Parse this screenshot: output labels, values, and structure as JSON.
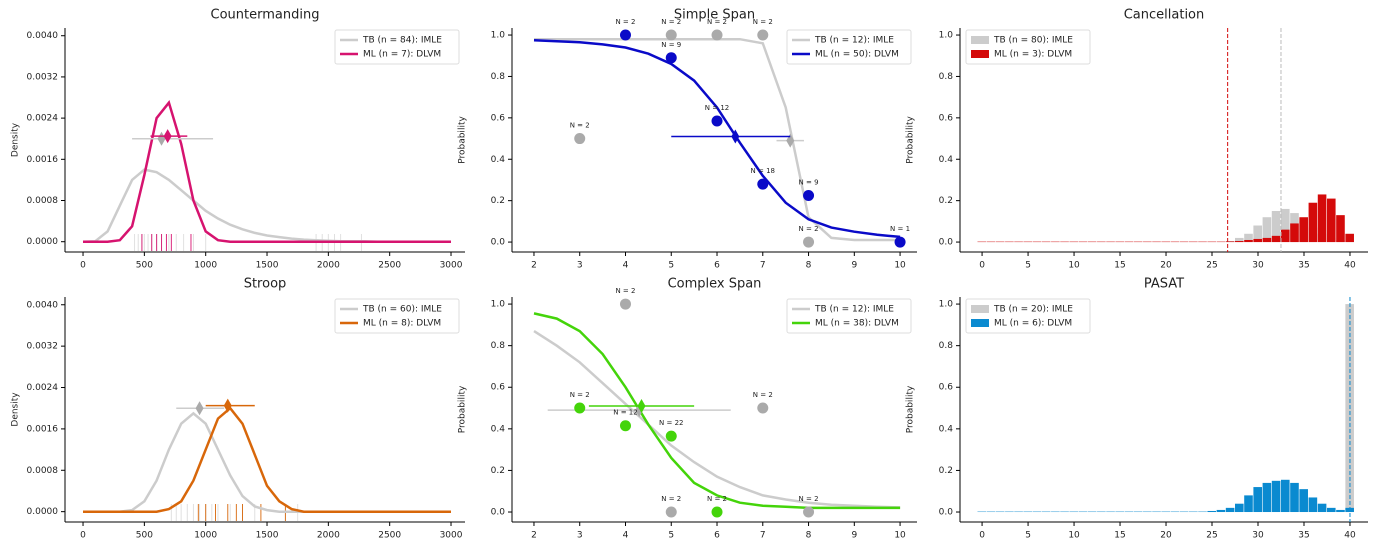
{
  "chart_data": [
    {
      "type": "line",
      "title": "Countermanding",
      "ylabel": "Density",
      "legend": "upper right",
      "xlim": [
        -147,
        3114
      ],
      "ylim": [
        -0.0002,
        0.00415
      ],
      "xticks": [
        0,
        500,
        1000,
        1500,
        2000,
        2500,
        3000
      ],
      "yticks": [
        {
          "value": 0,
          "label": "0.0000"
        },
        {
          "value": 0.0008,
          "label": "0.0008"
        },
        {
          "value": 0.0016,
          "label": "0.0016"
        },
        {
          "value": 0.0024,
          "label": "0.0024"
        },
        {
          "value": 0.0032,
          "label": "0.0032"
        },
        {
          "value": 0.004,
          "label": "0.0040"
        }
      ],
      "x": [
        0,
        100,
        200,
        300,
        400,
        500,
        600,
        700,
        800,
        900,
        1000,
        1100,
        1200,
        1300,
        1400,
        1500,
        1600,
        1700,
        1800,
        1900,
        2000,
        2100,
        2200,
        2300,
        2400,
        2500,
        2600,
        2700,
        2800,
        2900,
        3000
      ],
      "series": [
        {
          "name": "TB (n = 84): IMLE",
          "color": "#cccccc",
          "values": [
            0,
            1e-05,
            0.0002,
            0.0007,
            0.0012,
            0.0014,
            0.00135,
            0.0012,
            0.001,
            0.0008,
            0.0006,
            0.00045,
            0.00033,
            0.00024,
            0.00017,
            0.00012,
            9e-05,
            6e-05,
            4e-05,
            3e-05,
            2e-05,
            1e-05,
            1e-05,
            1e-05,
            0,
            0,
            0,
            0,
            0,
            0,
            0
          ],
          "rug": [
            420,
            450,
            480,
            500,
            530,
            560,
            600,
            640,
            700,
            760,
            820,
            900,
            1000,
            1900,
            1950,
            2000,
            2050,
            2100,
            2270
          ],
          "estimate": {
            "x": 640,
            "y": 0.002,
            "xerr": [
              400,
              1060
            ]
          }
        },
        {
          "name": "ML (n = 7): DLVM",
          "color": "#d6136f",
          "values": [
            0,
            0,
            0,
            3e-05,
            0.0003,
            0.0013,
            0.0024,
            0.0027,
            0.0019,
            0.0008,
            0.0002,
            3e-05,
            0,
            0,
            0,
            0,
            0,
            0,
            0,
            0,
            0,
            0,
            0,
            0,
            0,
            0,
            0,
            0,
            0,
            0,
            0
          ],
          "rug": [
            480,
            560,
            600,
            640,
            680,
            720,
            880
          ],
          "estimate": {
            "x": 690,
            "y": 0.00205,
            "xerr": [
              550,
              850
            ]
          }
        }
      ]
    },
    {
      "type": "line",
      "title": "Simple Span",
      "ylabel": "Probability",
      "legend": "upper right",
      "xlim": [
        1.52,
        10.37
      ],
      "ylim": [
        -0.048,
        1.034
      ],
      "xticks": [
        2,
        3,
        4,
        5,
        6,
        7,
        8,
        9,
        10
      ],
      "yticks": [
        {
          "value": 0,
          "label": "0.0"
        },
        0.2,
        0.4,
        0.6,
        0.8,
        {
          "value": 1,
          "label": "1.0"
        }
      ],
      "x": [
        2,
        2.5,
        3,
        3.5,
        4,
        4.5,
        5,
        5.5,
        6,
        6.5,
        7,
        7.5,
        8,
        8.5,
        9,
        9.5,
        10
      ],
      "series": [
        {
          "name": "TB (n = 12): IMLE",
          "color": "#cccccc",
          "values": [
            0.98,
            0.98,
            0.98,
            0.98,
            0.98,
            0.98,
            0.98,
            0.98,
            0.98,
            0.98,
            0.96,
            0.65,
            0.12,
            0.02,
            0.01,
            0.01,
            0.01
          ],
          "points": {
            "x": [
              3,
              5,
              6,
              7,
              8
            ],
            "values": [
              0.5,
              1,
              1,
              1,
              0
            ],
            "labels": [
              "N = 2",
              "N = 2",
              "N = 2",
              "N = 2",
              "N = 2"
            ]
          },
          "estimate": {
            "x": 7.6,
            "y": 0.49,
            "xerr": [
              7.3,
              7.9
            ]
          }
        },
        {
          "name": "ML (n = 50): DLVM",
          "color": "#0a0ac8",
          "values": [
            0.975,
            0.97,
            0.965,
            0.955,
            0.94,
            0.91,
            0.86,
            0.78,
            0.65,
            0.48,
            0.32,
            0.19,
            0.11,
            0.07,
            0.05,
            0.035,
            0.025
          ],
          "points": {
            "x": [
              4,
              5,
              6,
              7,
              8,
              10
            ],
            "values": [
              1,
              0.89,
              0.585,
              0.28,
              0.225,
              0
            ],
            "labels": [
              "N = 2",
              "N = 9",
              "N = 12",
              "N = 18",
              "N = 9",
              "N = 1"
            ]
          },
          "estimate": {
            "x": 6.4,
            "y": 0.51,
            "xerr": [
              5.0,
              7.6
            ]
          }
        }
      ]
    },
    {
      "type": "histogram",
      "title": "Cancellation",
      "ylabel": "Probability",
      "legend": "upper left",
      "xlim": [
        -2.4,
        41.96
      ],
      "ylim": [
        -0.048,
        1.034
      ],
      "xticks": [
        0,
        5,
        10,
        15,
        20,
        25,
        30,
        35,
        40
      ],
      "yticks": [
        {
          "value": 0,
          "label": "0.0"
        },
        0.2,
        0.4,
        0.6,
        0.8,
        {
          "value": 1,
          "label": "1.0"
        }
      ],
      "bins": [
        -0.5,
        0.5,
        1.5,
        2.5,
        3.5,
        4.5,
        5.5,
        6.5,
        7.5,
        8.5,
        9.5,
        10.5,
        11.5,
        12.5,
        13.5,
        14.5,
        15.5,
        16.5,
        17.5,
        18.5,
        19.5,
        20.5,
        21.5,
        22.5,
        23.5,
        24.5,
        25.5,
        26.5,
        27.5,
        28.5,
        29.5,
        30.5,
        31.5,
        32.5,
        33.5,
        34.5,
        35.5,
        36.5,
        37.5,
        38.5,
        39.5,
        40.5
      ],
      "series": [
        {
          "name": "TB (n = 80): IMLE",
          "color": "#cccccc",
          "vline": 32.5,
          "values": [
            0.001,
            0.001,
            0.001,
            0.001,
            0.001,
            0.001,
            0.001,
            0.001,
            0.001,
            0.001,
            0.001,
            0.001,
            0.001,
            0.001,
            0.001,
            0.001,
            0.001,
            0.001,
            0.001,
            0.001,
            0.001,
            0.001,
            0.001,
            0.001,
            0.001,
            0.001,
            0.001,
            0.005,
            0.02,
            0.04,
            0.08,
            0.12,
            0.15,
            0.16,
            0.14,
            0.1,
            0.07,
            0.04,
            0.02,
            0.01,
            0.005
          ]
        },
        {
          "name": "ML (n = 3): DLVM",
          "color": "#d40a0a",
          "vline": 26.7,
          "values": [
            0.002,
            0.002,
            0.002,
            0.002,
            0.002,
            0.002,
            0.002,
            0.002,
            0.002,
            0.002,
            0.002,
            0.002,
            0.002,
            0.002,
            0.002,
            0.002,
            0.002,
            0.002,
            0.002,
            0.002,
            0.002,
            0.002,
            0.002,
            0.002,
            0.002,
            0.002,
            0.002,
            0.003,
            0.005,
            0.01,
            0.015,
            0.02,
            0.03,
            0.06,
            0.09,
            0.12,
            0.19,
            0.23,
            0.21,
            0.13,
            0.04
          ]
        }
      ]
    },
    {
      "type": "line",
      "title": "Stroop",
      "ylabel": "Density",
      "legend": "upper right",
      "xlim": [
        -147,
        3114
      ],
      "ylim": [
        -0.0002,
        0.00415
      ],
      "xticks": [
        0,
        500,
        1000,
        1500,
        2000,
        2500,
        3000
      ],
      "yticks": [
        {
          "value": 0,
          "label": "0.0000"
        },
        {
          "value": 0.0008,
          "label": "0.0008"
        },
        {
          "value": 0.0016,
          "label": "0.0016"
        },
        {
          "value": 0.0024,
          "label": "0.0024"
        },
        {
          "value": 0.0032,
          "label": "0.0032"
        },
        {
          "value": 0.004,
          "label": "0.0040"
        }
      ],
      "x": [
        0,
        100,
        200,
        300,
        400,
        500,
        600,
        700,
        800,
        900,
        1000,
        1100,
        1200,
        1300,
        1400,
        1500,
        1600,
        1700,
        1800,
        1900,
        2000,
        2100,
        2200,
        2300,
        2400,
        2500,
        2600,
        2700,
        2800,
        2900,
        3000
      ],
      "series": [
        {
          "name": "TB (n = 60): IMLE",
          "color": "#cccccc",
          "values": [
            0,
            0,
            0,
            0,
            3e-05,
            0.0002,
            0.0006,
            0.0012,
            0.0017,
            0.0019,
            0.0017,
            0.0012,
            0.0007,
            0.0003,
            0.0001,
            3e-05,
            0,
            0,
            0,
            0,
            0,
            0,
            0,
            0,
            0,
            0,
            0,
            0,
            0,
            0,
            0
          ],
          "rug": [
            720,
            760,
            800,
            850,
            900,
            950,
            1000,
            1050,
            1100,
            1200,
            1300,
            1400,
            1650,
            1750
          ],
          "estimate": {
            "x": 950,
            "y": 0.002,
            "xerr": [
              760,
              1150
            ]
          }
        },
        {
          "name": "ML (n = 8): DLVM",
          "color": "#d8670a",
          "values": [
            0,
            0,
            0,
            0,
            0,
            0,
            0,
            5e-05,
            0.0002,
            0.0006,
            0.0012,
            0.0018,
            0.002,
            0.0017,
            0.0011,
            0.0005,
            0.0002,
            5e-05,
            0,
            0,
            0,
            0,
            0,
            0,
            0,
            0,
            0,
            0,
            0,
            0,
            0
          ],
          "rug": [
            940,
            1000,
            1080,
            1180,
            1250,
            1300,
            1450,
            1650
          ],
          "estimate": {
            "x": 1180,
            "y": 0.00205,
            "xerr": [
              1000,
              1400
            ]
          }
        }
      ]
    },
    {
      "type": "line",
      "title": "Complex Span",
      "ylabel": "Probability",
      "legend": "upper right",
      "xlim": [
        1.52,
        10.37
      ],
      "ylim": [
        -0.048,
        1.034
      ],
      "xticks": [
        2,
        3,
        4,
        5,
        6,
        7,
        8,
        9,
        10
      ],
      "yticks": [
        {
          "value": 0,
          "label": "0.0"
        },
        0.2,
        0.4,
        0.6,
        0.8,
        {
          "value": 1,
          "label": "1.0"
        }
      ],
      "x": [
        2,
        2.5,
        3,
        3.5,
        4,
        4.5,
        5,
        5.5,
        6,
        6.5,
        7,
        7.5,
        8,
        8.5,
        9,
        9.5,
        10
      ],
      "series": [
        {
          "name": "TB (n = 12): IMLE",
          "color": "#cccccc",
          "values": [
            0.87,
            0.8,
            0.72,
            0.62,
            0.52,
            0.42,
            0.32,
            0.24,
            0.17,
            0.12,
            0.08,
            0.06,
            0.045,
            0.035,
            0.03,
            0.025,
            0.022
          ],
          "points": {
            "x": [
              4,
              7,
              5,
              8
            ],
            "values": [
              1,
              0.5,
              0,
              0
            ],
            "labels": [
              "N = 2",
              "N = 2",
              "N = 2",
              "N = 2"
            ]
          },
          "estimate": {
            "x": 4.3,
            "y": 0.49,
            "xerr": [
              2.3,
              6.3
            ]
          }
        },
        {
          "name": "ML (n = 38): DLVM",
          "color": "#44d40a",
          "values": [
            0.955,
            0.93,
            0.87,
            0.76,
            0.6,
            0.42,
            0.26,
            0.14,
            0.08,
            0.045,
            0.03,
            0.025,
            0.02,
            0.02,
            0.02,
            0.02,
            0.02
          ],
          "points": {
            "x": [
              3,
              4,
              5,
              6
            ],
            "values": [
              0.5,
              0.415,
              0.365,
              0
            ],
            "labels": [
              "N = 2",
              "N = 12",
              "N = 22",
              "N = 2"
            ]
          },
          "estimate": {
            "x": 4.35,
            "y": 0.51,
            "xerr": [
              3.2,
              5.5
            ]
          }
        }
      ]
    },
    {
      "type": "histogram",
      "title": "PASAT",
      "ylabel": "Probability",
      "legend": "upper left",
      "xlim": [
        -2.4,
        41.96
      ],
      "ylim": [
        -0.048,
        1.034
      ],
      "xticks": [
        0,
        5,
        10,
        15,
        20,
        25,
        30,
        35,
        40
      ],
      "yticks": [
        {
          "value": 0,
          "label": "0.0"
        },
        0.2,
        0.4,
        0.6,
        0.8,
        {
          "value": 1,
          "label": "1.0"
        }
      ],
      "bins": [
        -0.5,
        0.5,
        1.5,
        2.5,
        3.5,
        4.5,
        5.5,
        6.5,
        7.5,
        8.5,
        9.5,
        10.5,
        11.5,
        12.5,
        13.5,
        14.5,
        15.5,
        16.5,
        17.5,
        18.5,
        19.5,
        20.5,
        21.5,
        22.5,
        23.5,
        24.5,
        25.5,
        26.5,
        27.5,
        28.5,
        29.5,
        30.5,
        31.5,
        32.5,
        33.5,
        34.5,
        35.5,
        36.5,
        37.5,
        38.5,
        39.5,
        40.5
      ],
      "series": [
        {
          "name": "TB (n = 20): IMLE",
          "color": "#cccccc",
          "vline": 40,
          "values": [
            0,
            0,
            0,
            0,
            0,
            0,
            0,
            0,
            0,
            0,
            0,
            0,
            0,
            0,
            0,
            0,
            0,
            0,
            0,
            0,
            0,
            0,
            0,
            0,
            0,
            0,
            0,
            0,
            0,
            0,
            0,
            0,
            0,
            0,
            0,
            0,
            0,
            0,
            0,
            0,
            1
          ]
        },
        {
          "name": "ML (n = 6): DLVM",
          "color": "#0a8ad0",
          "vline": 40,
          "values": [
            0.002,
            0.002,
            0.002,
            0.002,
            0.002,
            0.002,
            0.002,
            0.002,
            0.002,
            0.002,
            0.002,
            0.002,
            0.002,
            0.002,
            0.002,
            0.002,
            0.002,
            0.002,
            0.002,
            0.002,
            0.002,
            0.002,
            0.002,
            0.002,
            0.002,
            0.005,
            0.01,
            0.02,
            0.04,
            0.08,
            0.12,
            0.14,
            0.15,
            0.155,
            0.14,
            0.11,
            0.07,
            0.04,
            0.02,
            0.01,
            0.02
          ]
        }
      ]
    }
  ]
}
